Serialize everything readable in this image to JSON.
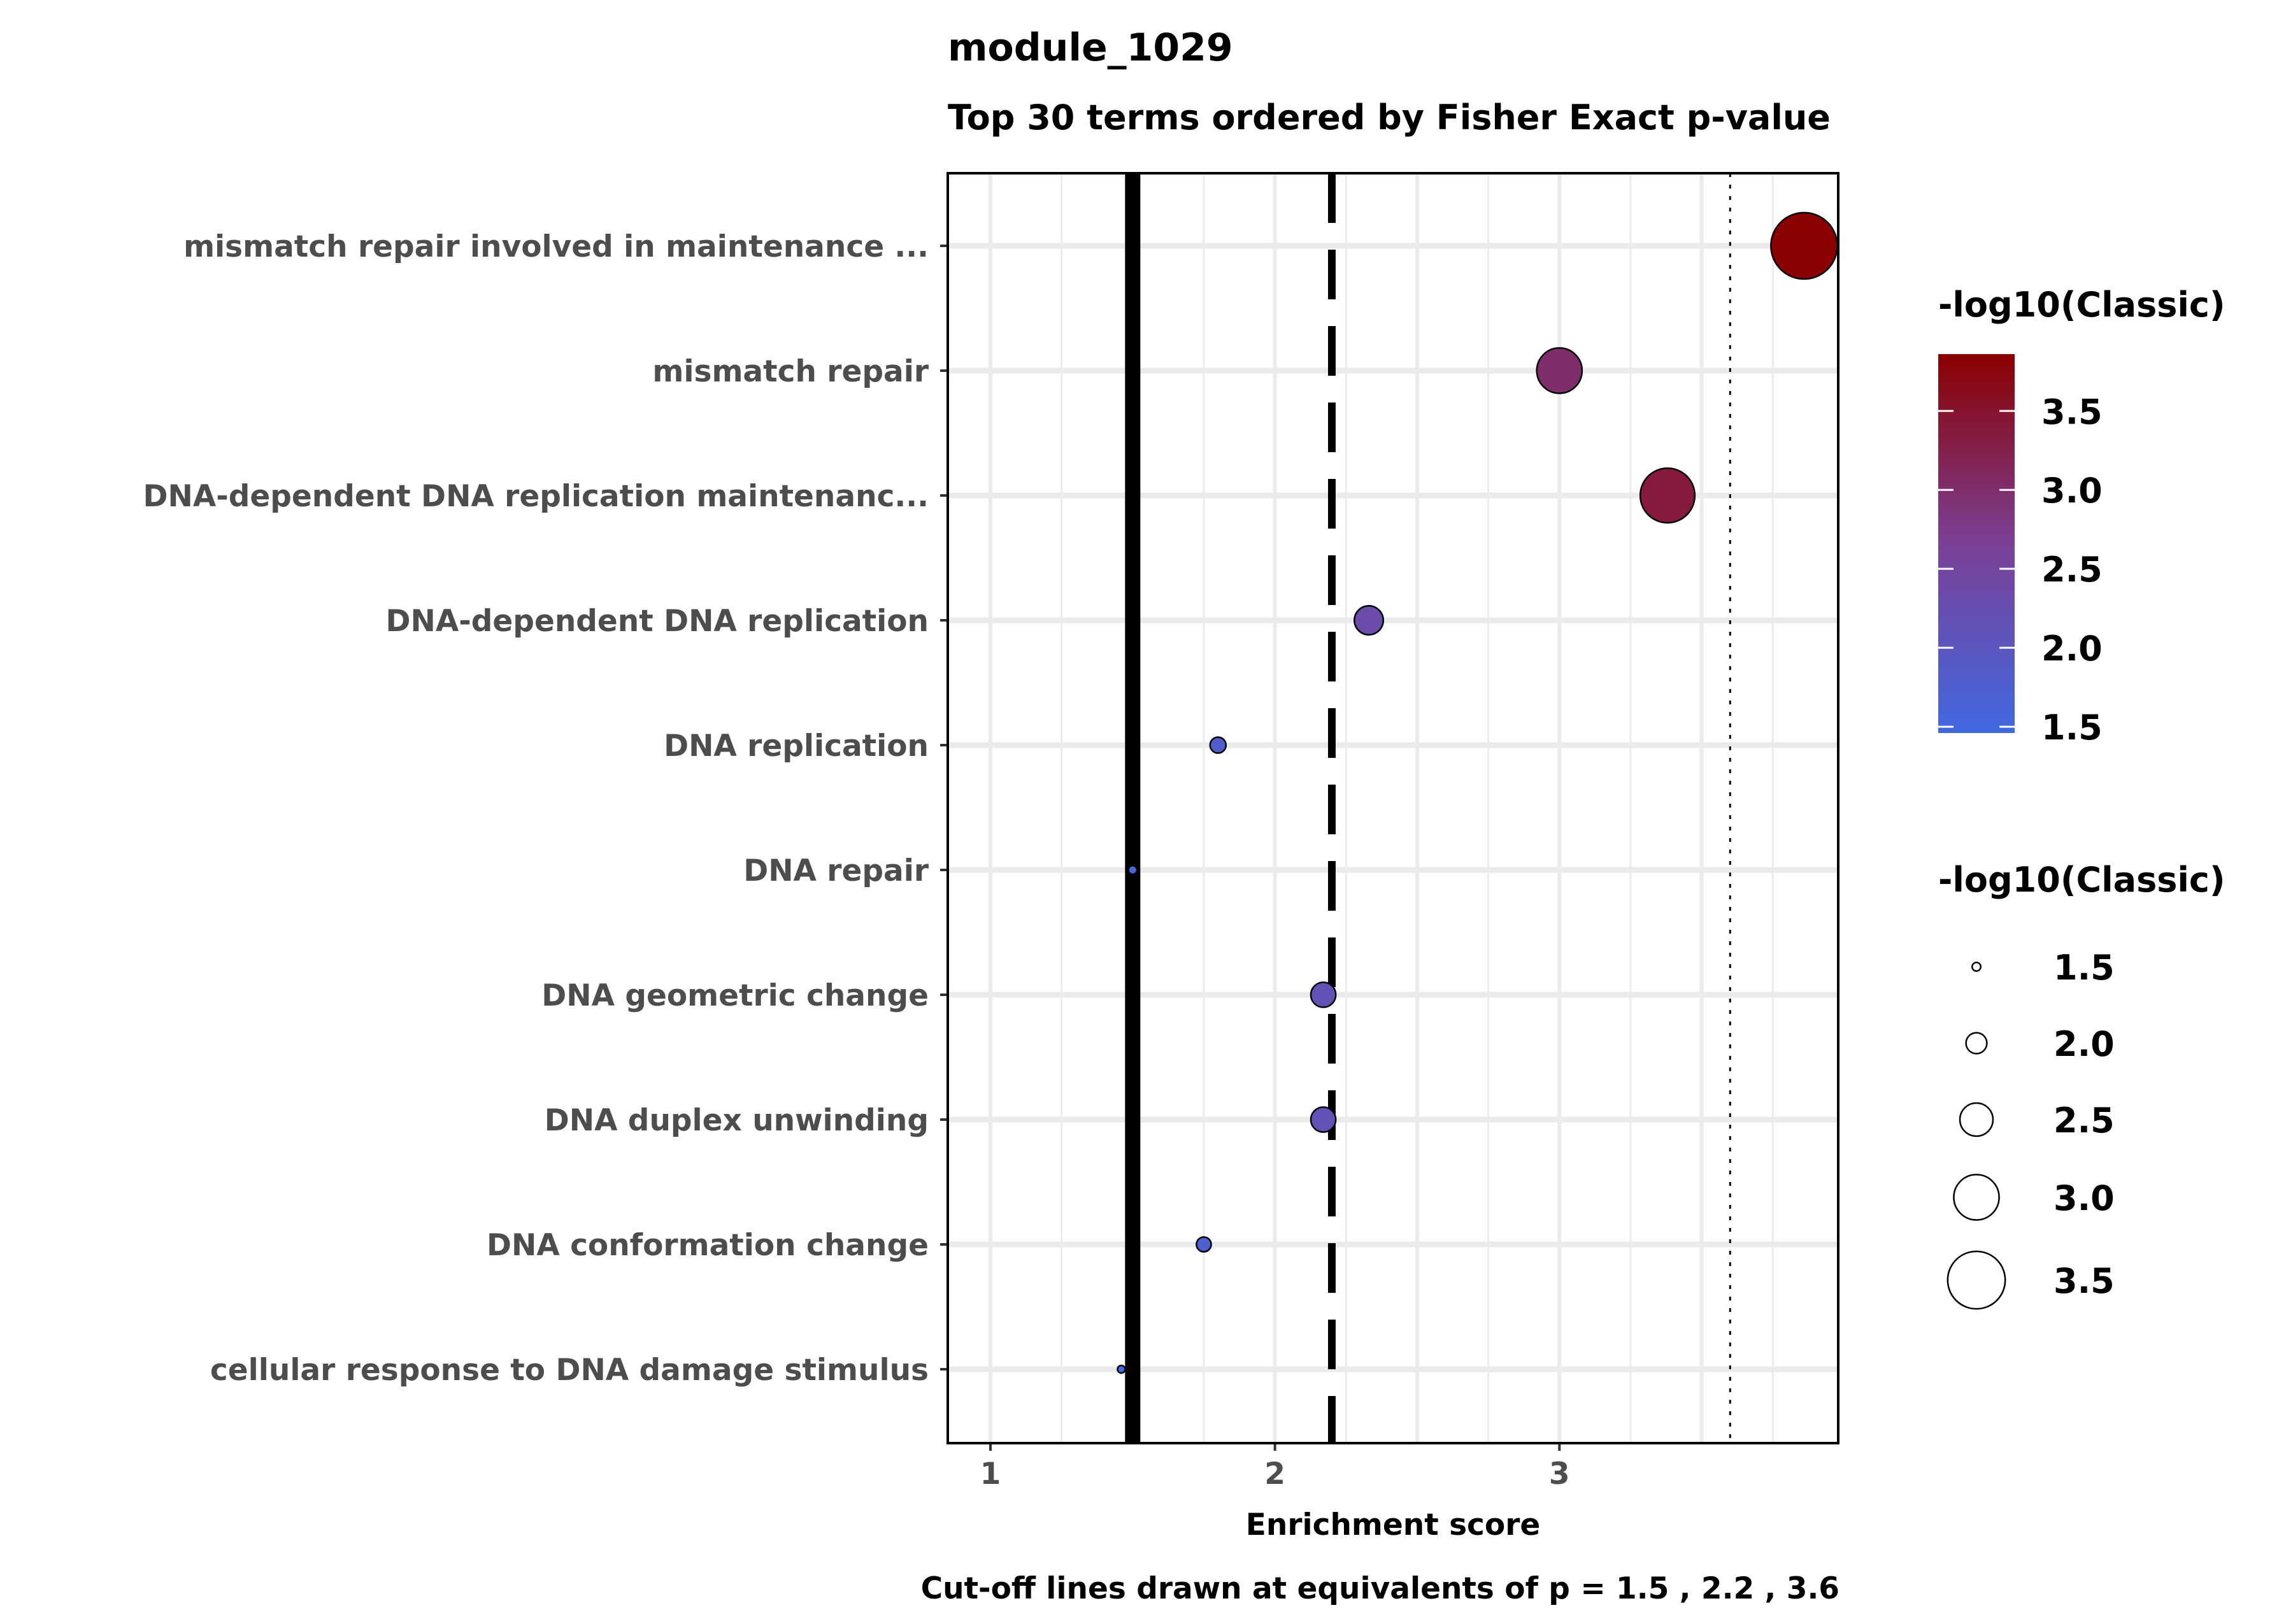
{
  "chart_data": {
    "type": "scatter",
    "title": "module_1029",
    "subtitle": "Top 30 terms ordered by Fisher Exact p-value",
    "xlabel": "Enrichment score",
    "ylabel": "",
    "caption": "Cut-off lines drawn at equivalents of p = 1.5 , 2.2 , 3.6",
    "xlim": [
      0.85,
      3.98
    ],
    "xticks": [
      1,
      2,
      3
    ],
    "xtick_labels": [
      "1",
      "2",
      "3"
    ],
    "grid": true,
    "cutoff_lines": [
      {
        "value": 1.5,
        "style": "solid"
      },
      {
        "value": 2.2,
        "style": "dashed"
      },
      {
        "value": 3.6,
        "style": "dotted"
      }
    ],
    "terms": [
      "mismatch repair involved in maintenance ...",
      "mismatch repair",
      "DNA-dependent DNA replication maintenanc...",
      "DNA-dependent DNA replication",
      "DNA replication",
      "DNA repair",
      "DNA geometric change",
      "DNA duplex unwinding",
      "DNA conformation change",
      "cellular response to DNA damage stimulus"
    ],
    "points": [
      {
        "term": "mismatch repair involved in maintenance ...",
        "x": 3.86,
        "size": 3.86
      },
      {
        "term": "mismatch repair",
        "x": 3.0,
        "size": 3.0
      },
      {
        "term": "DNA-dependent DNA replication maintenanc...",
        "x": 3.38,
        "size": 3.38
      },
      {
        "term": "DNA-dependent DNA replication",
        "x": 2.33,
        "size": 2.33
      },
      {
        "term": "DNA replication",
        "x": 1.8,
        "size": 1.8
      },
      {
        "term": "DNA repair",
        "x": 1.5,
        "size": 1.5
      },
      {
        "term": "DNA geometric change",
        "x": 2.17,
        "size": 2.17
      },
      {
        "term": "DNA duplex unwinding",
        "x": 2.17,
        "size": 2.17
      },
      {
        "term": "DNA conformation change",
        "x": 1.75,
        "size": 1.75
      },
      {
        "term": "cellular response to DNA damage stimulus",
        "x": 1.46,
        "size": 1.46
      }
    ],
    "color_legend": {
      "title": "-log10(Classic)",
      "min": 1.46,
      "max": 3.86,
      "low_color": "#4169e1",
      "mid_color": "#7b4096",
      "high_color": "#8b0000",
      "ticks": [
        1.5,
        2.0,
        2.5,
        3.0,
        3.5
      ],
      "tick_labels": [
        "1.5",
        "2.0",
        "2.5",
        "3.0",
        "3.5"
      ]
    },
    "size_legend": {
      "title": "-log10(Classic)",
      "values": [
        1.5,
        2.0,
        2.5,
        3.0,
        3.5
      ],
      "labels": [
        "1.5",
        "2.0",
        "2.5",
        "3.0",
        "3.5"
      ]
    }
  }
}
